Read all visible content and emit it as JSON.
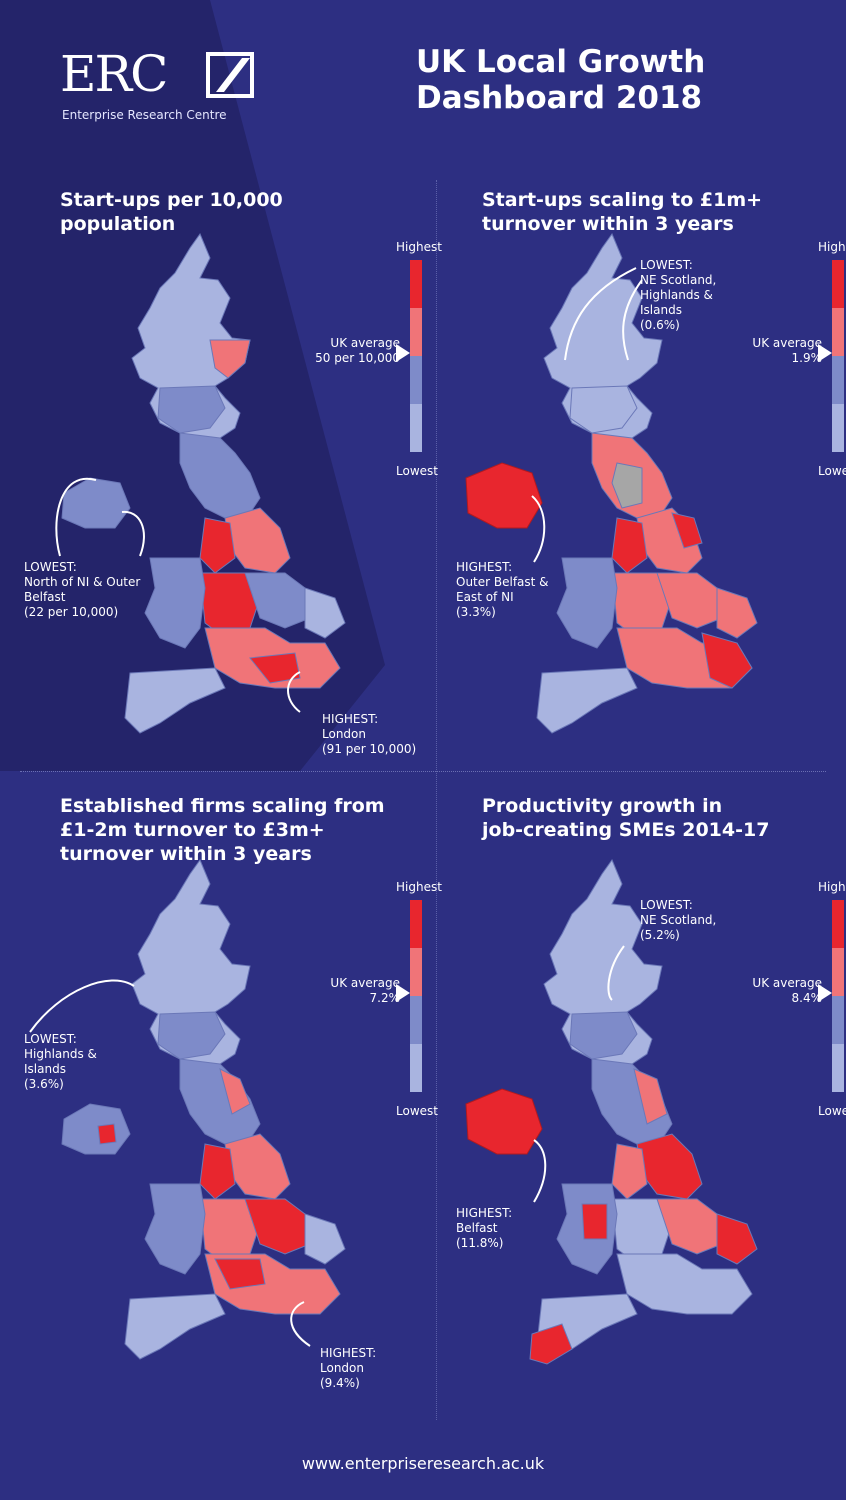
{
  "header": {
    "logo_text": "ERC",
    "logo_subtitle": "Enterprise Research Centre",
    "title_line1": "UK Local Growth",
    "title_line2": "Dashboard 2018"
  },
  "colors": {
    "background": "#2d2f82",
    "band_dark": "#24246a",
    "scale_highest": "#e8262e",
    "scale_high": "#f07478",
    "scale_low": "#7e8bc9",
    "scale_lowest": "#a9b4e0",
    "no_data": "#a6a6a6"
  },
  "legend_common": {
    "highest": "Highest",
    "lowest": "Lowest"
  },
  "panels": {
    "p1": {
      "title_line1": "Start-ups per 10,000",
      "title_line2": "population",
      "uk_average_line1": "UK average",
      "uk_average_line2": "50 per 10,000",
      "lowest": [
        "LOWEST:",
        "North of NI & Outer",
        "Belfast",
        "(22 per 10,000)"
      ],
      "highest": [
        "HIGHEST:",
        "London",
        "(91 per 10,000)"
      ]
    },
    "p2": {
      "title_line1": "Start-ups scaling to £1m+",
      "title_line2": "turnover within 3 years",
      "uk_average_line1": "UK average",
      "uk_average_line2": "1.9%",
      "lowest": [
        "LOWEST:",
        "NE Scotland,",
        "Highlands &",
        "Islands",
        "(0.6%)"
      ],
      "highest": [
        "HIGHEST:",
        "Outer Belfast &",
        "East of NI",
        "(3.3%)"
      ]
    },
    "p3": {
      "title_line1": "Established firms scaling from",
      "title_line2": "£1-2m turnover to £3m+",
      "title_line3": "turnover within 3 years",
      "uk_average_line1": "UK average",
      "uk_average_line2": "7.2%",
      "lowest": [
        "LOWEST:",
        "Highlands &",
        "Islands",
        "(3.6%)"
      ],
      "highest": [
        "HIGHEST:",
        "London",
        "(9.4%)"
      ]
    },
    "p4": {
      "title_line1": "Productivity growth in",
      "title_line2": "job-creating SMEs 2014-17",
      "uk_average_line1": "UK average",
      "uk_average_line2": "8.4%",
      "lowest": [
        "LOWEST:",
        "NE Scotland,",
        "(5.2%)"
      ],
      "highest": [
        "HIGHEST:",
        "Belfast",
        "(11.8%)"
      ]
    }
  },
  "footer": {
    "url": "www.enterpriseresearch.ac.uk"
  }
}
